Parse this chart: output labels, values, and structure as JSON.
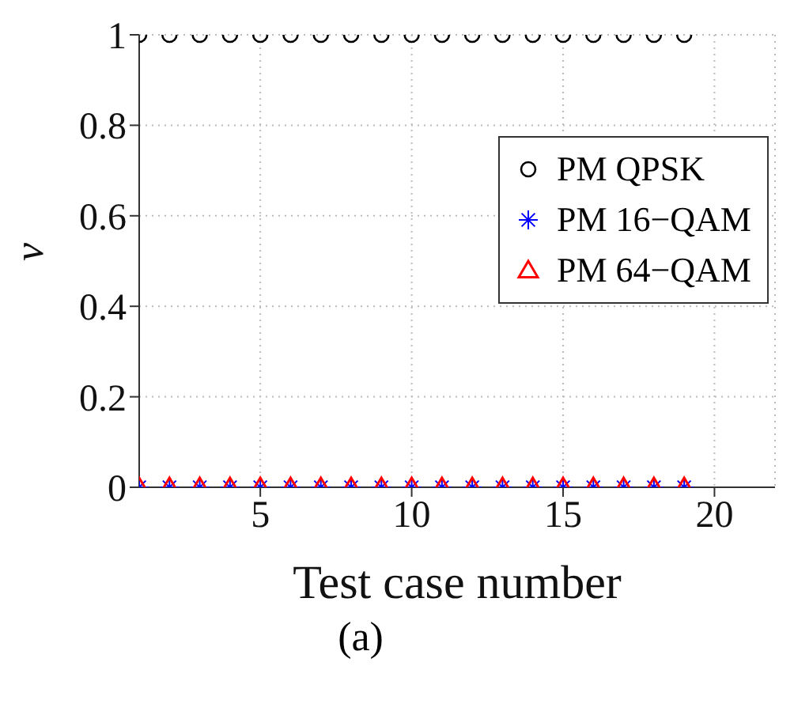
{
  "chart_data": {
    "type": "scatter",
    "xlabel": "Test case number",
    "ylabel": "v",
    "annotations": [
      "(a)"
    ],
    "x": [
      1,
      2,
      3,
      4,
      5,
      6,
      7,
      8,
      9,
      10,
      11,
      12,
      13,
      14,
      15,
      16,
      17,
      18,
      19
    ],
    "series": [
      {
        "name": "PM QPSK",
        "color": "#000000",
        "marker": "circle",
        "values": [
          1,
          1,
          1,
          1,
          1,
          1,
          1,
          1,
          1,
          1,
          1,
          1,
          1,
          1,
          1,
          1,
          1,
          1,
          1
        ]
      },
      {
        "name": "PM 16−QAM",
        "color": "#0000ff",
        "marker": "cross",
        "values": [
          0,
          0,
          0,
          0,
          0,
          0,
          0,
          0,
          0,
          0,
          0,
          0,
          0,
          0,
          0,
          0,
          0,
          0,
          0
        ]
      },
      {
        "name": "PM 64−QAM",
        "color": "#ff0000",
        "marker": "triangle",
        "values": [
          0,
          0,
          0,
          0,
          0,
          0,
          0,
          0,
          0,
          0,
          0,
          0,
          0,
          0,
          0,
          0,
          0,
          0,
          0
        ]
      }
    ],
    "xlim": [
      1,
      22
    ],
    "xticks": [
      5,
      10,
      15,
      20
    ],
    "ylim": [
      0,
      1
    ],
    "yticks": [
      0,
      0.2,
      0.4,
      0.6,
      0.8,
      1
    ],
    "grid": true,
    "legend": "top right"
  }
}
